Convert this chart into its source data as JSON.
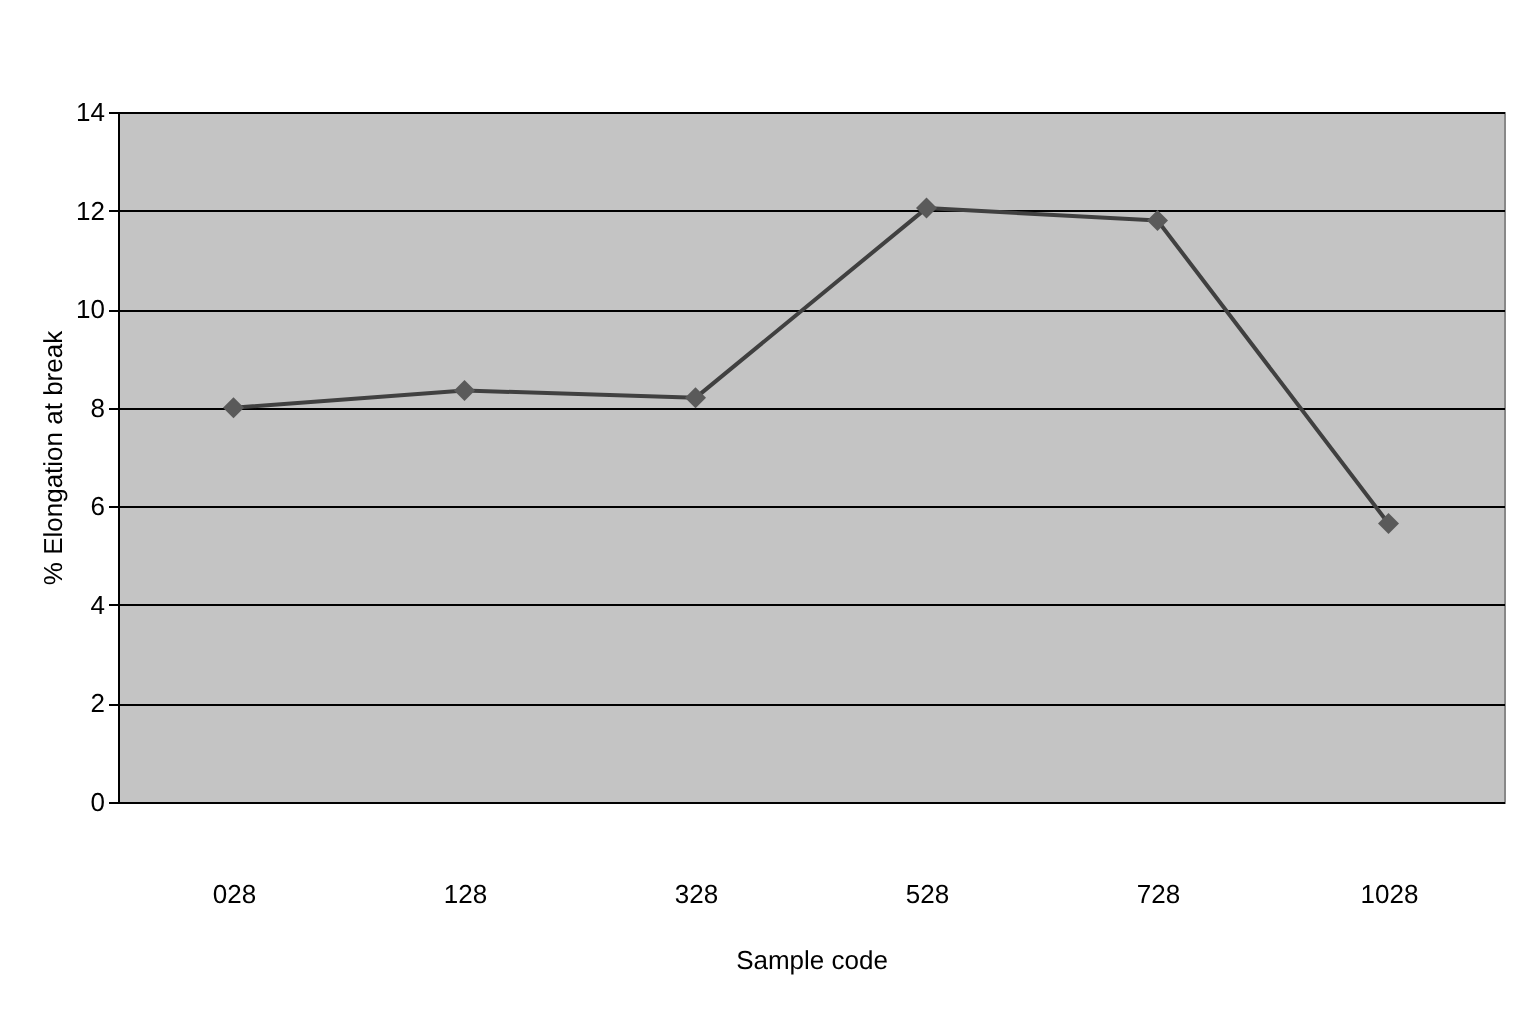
{
  "chart_data": {
    "type": "line",
    "xlabel": "Sample code",
    "ylabel": "% Elongation at break",
    "categories": [
      "028",
      "128",
      "328",
      "528",
      "728",
      "1028"
    ],
    "series": [
      {
        "color": "#404040",
        "values": [
          8.0,
          8.35,
          8.2,
          12.05,
          11.8,
          5.65
        ]
      }
    ],
    "ylim": [
      0,
      14
    ],
    "yticks": [
      0,
      2,
      4,
      6,
      8,
      10,
      12,
      14
    ],
    "grid": "y",
    "marker": "diamond",
    "line_style": "solid"
  }
}
